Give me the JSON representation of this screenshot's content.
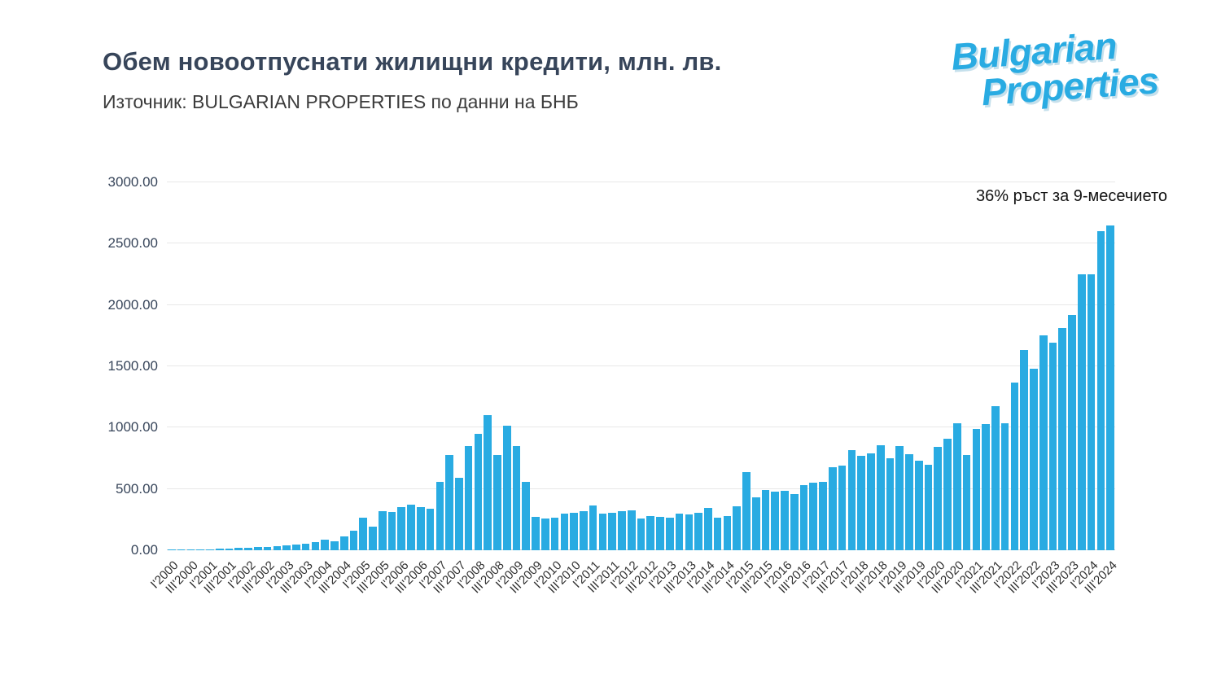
{
  "header": {
    "title": "Обем новоотпуснати жилищни кредити, млн. лв.",
    "subtitle": "Източник: BULGARIAN PROPERTIES по данни на БНБ"
  },
  "logo": {
    "line1": "Bulgarian",
    "line2": "Properties",
    "color": "#29abe2"
  },
  "annotation": "36% ръст за 9-месечието",
  "chart_data": {
    "type": "bar",
    "title": "Обем новоотпуснати жилищни кредити, млн. лв.",
    "xlabel": "",
    "ylabel": "",
    "unit": "млн. лв.",
    "ylim": [
      0,
      3000
    ],
    "y_ticks": [
      "0.00",
      "500.00",
      "1000.00",
      "1500.00",
      "2000.00",
      "2500.00",
      "3000.00"
    ],
    "grid": true,
    "legend": false,
    "bar_color": "#29abe2",
    "x_labels": [
      "I'2000",
      "III'2000",
      "I'2001",
      "III'2001",
      "I'2002",
      "III'2002",
      "I'2003",
      "III'2003",
      "I'2004",
      "III'2004",
      "I'2005",
      "III'2005",
      "I'2006",
      "III'2006",
      "I'2007",
      "III'2007",
      "I'2008",
      "III'2008",
      "I'2009",
      "III'2009",
      "I'2010",
      "III'2010",
      "I'2011",
      "III'2011",
      "I'2012",
      "III'2012",
      "I'2013",
      "III'2013",
      "I'2014",
      "III'2014",
      "I'2015",
      "III'2015",
      "I'2016",
      "III'2016",
      "I'2017",
      "III'2017",
      "I'2018",
      "III'2018",
      "I'2019",
      "III'2019",
      "I'2020",
      "III'2020",
      "I'2021",
      "III'2021",
      "I'2022",
      "III'2022",
      "I'2023",
      "III'2023",
      "I'2024",
      "III'2024"
    ],
    "categories": [
      "I'2000",
      "II'2000",
      "III'2000",
      "IV'2000",
      "I'2001",
      "II'2001",
      "III'2001",
      "IV'2001",
      "I'2002",
      "II'2002",
      "III'2002",
      "IV'2002",
      "I'2003",
      "II'2003",
      "III'2003",
      "IV'2003",
      "I'2004",
      "II'2004",
      "III'2004",
      "IV'2004",
      "I'2005",
      "II'2005",
      "III'2005",
      "IV'2005",
      "I'2006",
      "II'2006",
      "III'2006",
      "IV'2006",
      "I'2007",
      "II'2007",
      "III'2007",
      "IV'2007",
      "I'2008",
      "II'2008",
      "III'2008",
      "IV'2008",
      "I'2009",
      "II'2009",
      "III'2009",
      "IV'2009",
      "I'2010",
      "II'2010",
      "III'2010",
      "IV'2010",
      "I'2011",
      "II'2011",
      "III'2011",
      "IV'2011",
      "I'2012",
      "II'2012",
      "III'2012",
      "IV'2012",
      "I'2013",
      "II'2013",
      "III'2013",
      "IV'2013",
      "I'2014",
      "II'2014",
      "III'2014",
      "IV'2014",
      "I'2015",
      "II'2015",
      "III'2015",
      "IV'2015",
      "I'2016",
      "II'2016",
      "III'2016",
      "IV'2016",
      "I'2017",
      "II'2017",
      "III'2017",
      "IV'2017",
      "I'2018",
      "II'2018",
      "III'2018",
      "IV'2018",
      "I'2019",
      "II'2019",
      "III'2019",
      "IV'2019",
      "I'2020",
      "II'2020",
      "III'2020",
      "IV'2020",
      "I'2021",
      "II'2021",
      "III'2021",
      "IV'2021",
      "I'2022",
      "II'2022",
      "III'2022",
      "IV'2022",
      "I'2023",
      "II'2023",
      "III'2023",
      "IV'2023",
      "I'2024",
      "II'2024",
      "III'2024"
    ],
    "values": [
      4,
      5,
      6,
      8,
      10,
      12,
      14,
      17,
      20,
      24,
      28,
      33,
      38,
      46,
      56,
      66,
      85,
      72,
      115,
      160,
      265,
      195,
      320,
      310,
      350,
      372,
      355,
      338,
      560,
      775,
      592,
      850,
      950,
      1105,
      778,
      1018,
      848,
      560,
      272,
      262,
      268,
      298,
      305,
      318,
      362,
      298,
      305,
      318,
      328,
      262,
      280,
      272,
      268,
      298,
      295,
      308,
      345,
      265,
      280,
      358,
      638,
      432,
      488,
      478,
      485,
      460,
      530,
      550,
      558,
      678,
      690,
      818,
      770,
      788,
      858,
      750,
      848,
      780,
      730,
      698,
      840,
      910,
      1038,
      778,
      988,
      1032,
      1178,
      1038,
      1365,
      1630,
      1480,
      1750,
      1690,
      1810,
      1920,
      2250,
      2250,
      2600,
      2650
    ]
  }
}
